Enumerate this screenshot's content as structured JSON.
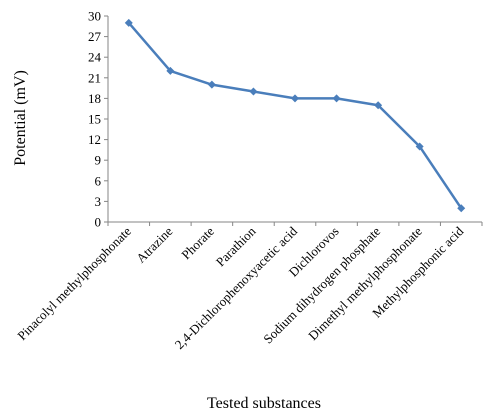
{
  "chart_data": {
    "type": "line",
    "title": "",
    "xlabel": "Tested substances",
    "ylabel": "Potential (mV)",
    "categories": [
      "Pinacolyl methylphosphonate",
      "Atrazine",
      "Phorate",
      "Parathion",
      "2,4-Dichlorophenoxyacetic acid",
      "Dichlorovos",
      "Sodium dihydrogen phosphate",
      "Dimethyl methylphosphonate",
      "Methylphosphonic acid"
    ],
    "series": [
      {
        "values": [
          29,
          22,
          20,
          19,
          18,
          18,
          17,
          11,
          2
        ]
      }
    ],
    "ylim": [
      0,
      30
    ],
    "yticks": [
      "0",
      "3",
      "6",
      "9",
      "12",
      "15",
      "18",
      "21",
      "24",
      "27",
      "30"
    ],
    "grid": false,
    "legend": "none",
    "colors": {
      "line": "#4a7ebb",
      "marker": "#4a7ebb",
      "axis": "#868686",
      "text": "#000000"
    }
  }
}
